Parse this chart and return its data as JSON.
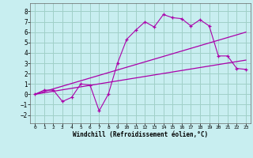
{
  "bg_color": "#c8eef0",
  "grid_color": "#a0d0c8",
  "line_color": "#aa00aa",
  "xlabel": "Windchill (Refroidissement éolien,°C)",
  "xlim": [
    -0.5,
    23.5
  ],
  "ylim": [
    -2.8,
    8.8
  ],
  "yticks": [
    -2,
    -1,
    0,
    1,
    2,
    3,
    4,
    5,
    6,
    7,
    8
  ],
  "xticks": [
    0,
    1,
    2,
    3,
    4,
    5,
    6,
    7,
    8,
    9,
    10,
    11,
    12,
    13,
    14,
    15,
    16,
    17,
    18,
    19,
    20,
    21,
    22,
    23
  ],
  "line1_x": [
    0,
    1,
    2,
    3,
    4,
    5,
    6,
    7,
    8,
    9,
    10,
    11,
    12,
    13,
    14,
    15,
    16,
    17,
    18,
    19,
    20,
    21,
    22,
    23
  ],
  "line1_y": [
    0.0,
    0.4,
    0.4,
    -0.7,
    -0.3,
    1.0,
    0.9,
    -1.6,
    0.0,
    3.0,
    5.3,
    6.2,
    7.0,
    6.5,
    7.7,
    7.4,
    7.3,
    6.6,
    7.2,
    6.6,
    3.7,
    3.7,
    2.5,
    2.4
  ],
  "line2_x": [
    0,
    23
  ],
  "line2_y": [
    0.0,
    3.3
  ],
  "line3_x": [
    0,
    23
  ],
  "line3_y": [
    0.0,
    6.0
  ]
}
